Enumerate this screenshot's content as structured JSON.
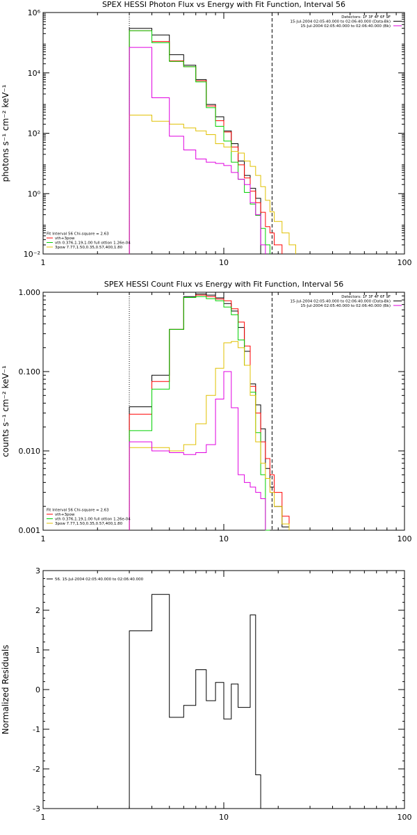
{
  "chart_data": [
    {
      "type": "line",
      "title": "SPEX HESSI Photon Flux vs Energy with Fit Function, Interval 56",
      "xlabel": "",
      "ylabel": "photons s⁻¹ cm⁻² keV⁻¹",
      "xscale": "log",
      "yscale": "log",
      "xlim": [
        1,
        100
      ],
      "ylim": [
        0.01,
        1000000
      ],
      "xticks": [
        1,
        10,
        100
      ],
      "xtick_labels": [
        "1",
        "10",
        "100"
      ],
      "yticks": [
        0.01,
        1,
        100,
        10000,
        1000000
      ],
      "ytick_labels": [
        "10⁻²",
        "10⁰",
        "10²",
        "10⁴",
        "10⁶"
      ],
      "vlines": [
        {
          "x": 3.0,
          "style": "dotted"
        },
        {
          "x": 18.5,
          "style": "dashed"
        }
      ],
      "legend_left": [
        {
          "text": "Fit Interval 56   Chi-square = 2.63",
          "color": "#000000"
        },
        {
          "text": "vth+3pow",
          "color": "#ff0000"
        },
        {
          "text": "vth 0.376,1.19,1.00   full ottion 1.26e-04",
          "color": "#00d000"
        },
        {
          "text": "3pow 7.77,1.50,0.35,0.57,400,1.80",
          "color": "#e0c000"
        }
      ],
      "legend_right": [
        {
          "text": "Detectors: 1F 3F 4F 6F 9F",
          "color": "#000000"
        },
        {
          "text": "15-Jul-2004 02:05:40.000 to 02:06:40.000 (Data-Bk)",
          "color": "#000000"
        },
        {
          "text": "15-Jul-2004 02:05:40.000 to 02:06:40.000 (Bk)",
          "color": "#e000e0"
        }
      ],
      "bin_edges": [
        3,
        4,
        5,
        6,
        7,
        8,
        9,
        10,
        11,
        12,
        13,
        14,
        15,
        16,
        17,
        18,
        19,
        21,
        23,
        25
      ],
      "series": [
        {
          "name": "Data-Bk",
          "color": "#000000",
          "values": [
            300000,
            180000,
            40000,
            18000,
            6000,
            900,
            350,
            120,
            45,
            12,
            4,
            1.5,
            0.7,
            null,
            null,
            null,
            null,
            null,
            null
          ]
        },
        {
          "name": "vth+3pow",
          "color": "#ff0000",
          "values": [
            250000,
            110000,
            25000,
            16000,
            5500,
            800,
            260,
            110,
            35,
            9,
            3.3,
            1.2,
            0.5,
            0.24,
            0.08,
            0.05,
            0.02,
            null,
            null
          ]
        },
        {
          "name": "vth",
          "color": "#00d000",
          "values": [
            250000,
            100000,
            24000,
            16000,
            5000,
            700,
            170,
            55,
            11,
            3,
            1.1,
            0.45,
            0.19,
            0.07,
            0.02,
            null,
            null,
            null,
            null
          ]
        },
        {
          "name": "3pow",
          "color": "#e0c000",
          "values": [
            400,
            250,
            200,
            150,
            120,
            90,
            45,
            35,
            25,
            22,
            12,
            8,
            4,
            1.7,
            0.6,
            0.25,
            0.12,
            0.05,
            0.02
          ]
        },
        {
          "name": "Bk",
          "color": "#e000e0",
          "values": [
            70000,
            1500,
            80,
            28,
            14,
            11,
            10,
            8.5,
            5,
            3,
            2,
            0.5,
            0.2,
            0.02,
            null,
            null,
            null,
            null,
            null
          ]
        }
      ]
    },
    {
      "type": "line",
      "title": "SPEX HESSI Count Flux vs Energy with Fit Function, Interval 56",
      "xlabel": "",
      "ylabel": "counts s⁻¹ cm⁻² keV⁻¹",
      "xscale": "log",
      "yscale": "log",
      "xlim": [
        1,
        100
      ],
      "ylim": [
        0.001,
        1.0
      ],
      "xticks": [
        1,
        10,
        100
      ],
      "xtick_labels": [
        "1",
        "10",
        "100"
      ],
      "yticks": [
        0.001,
        0.01,
        0.1,
        1.0
      ],
      "ytick_labels": [
        "0.001",
        "0.010",
        "0.100",
        "1.000"
      ],
      "vlines": [
        {
          "x": 3.0,
          "style": "dotted"
        },
        {
          "x": 18.5,
          "style": "dashed"
        }
      ],
      "legend_left": [
        {
          "text": "Fit Interval 56   Chi-square = 2.63",
          "color": "#000000"
        },
        {
          "text": "vth+3pow",
          "color": "#ff0000"
        },
        {
          "text": "vth 0.376,1.19,1.00   full ottion 1.26e-04",
          "color": "#00d000"
        },
        {
          "text": "3pow 7.77,1.50,0.35,0.57,400,1.80",
          "color": "#e0c000"
        }
      ],
      "legend_right": [
        {
          "text": "Detectors: 1F 3F 4F 6F 9F",
          "color": "#000000"
        },
        {
          "text": "15-Jul-2004 02:05:40.000 to 02:06:40.000 (Data-Bk)",
          "color": "#000000"
        },
        {
          "text": "15-Jul-2004 02:05:40.000 to 02:06:40.000 (Bk)",
          "color": "#e000e0"
        }
      ],
      "bin_edges": [
        3,
        4,
        5,
        6,
        7,
        8,
        9,
        10,
        11,
        12,
        13,
        14,
        15,
        16,
        17,
        18,
        19,
        21,
        23,
        25
      ],
      "series": [
        {
          "name": "Data-Bk",
          "color": "#000000",
          "values": [
            0.036,
            0.09,
            0.34,
            0.88,
            0.95,
            0.92,
            0.85,
            0.72,
            0.58,
            0.36,
            0.18,
            0.07,
            0.038,
            0.019,
            0.006,
            0.0035,
            0.002,
            0.0011,
            null
          ]
        },
        {
          "name": "vth+3pow",
          "color": "#ff0000",
          "values": [
            0.029,
            0.075,
            0.34,
            0.86,
            0.92,
            0.88,
            0.82,
            0.78,
            0.62,
            0.42,
            0.21,
            0.065,
            0.03,
            0.013,
            0.008,
            0.005,
            0.003,
            0.0015,
            null
          ]
        },
        {
          "name": "vth",
          "color": "#00d000",
          "values": [
            0.018,
            0.06,
            0.34,
            0.86,
            0.88,
            0.83,
            0.78,
            0.65,
            0.52,
            0.25,
            0.12,
            0.055,
            0.017,
            0.005,
            0.001,
            null,
            null,
            null,
            null
          ]
        },
        {
          "name": "3pow",
          "color": "#e0c000",
          "values": [
            0.011,
            0.011,
            0.01,
            0.012,
            0.022,
            0.05,
            0.11,
            0.23,
            0.24,
            0.2,
            0.12,
            0.05,
            0.013,
            0.007,
            0.0045,
            0.003,
            0.002,
            0.0012,
            null
          ]
        },
        {
          "name": "Bk",
          "color": "#e000e0",
          "values": [
            0.013,
            0.01,
            0.0095,
            0.009,
            0.0095,
            0.012,
            0.045,
            0.1,
            0.035,
            0.005,
            0.004,
            0.0035,
            0.003,
            0.0025,
            null,
            null,
            null,
            null,
            null
          ]
        }
      ]
    },
    {
      "type": "line",
      "title": "",
      "xlabel": "",
      "ylabel": "Normalized Residuals",
      "xscale": "log",
      "yscale": "linear",
      "xlim": [
        1,
        100
      ],
      "ylim": [
        -3,
        3
      ],
      "xticks": [
        1,
        10,
        100
      ],
      "xtick_labels": [
        "1",
        "10",
        "100"
      ],
      "yticks": [
        -3,
        -2,
        -1,
        0,
        1,
        2,
        3
      ],
      "ytick_labels": [
        "-3",
        "-2",
        "-1",
        "0",
        "1",
        "2",
        "3"
      ],
      "legend_left": [
        {
          "text": "56. 15-Jul-2004 02:05:40.000 to 02:06:40.000",
          "color": "#000000"
        }
      ],
      "bin_edges": [
        3,
        4,
        5,
        6,
        7,
        8,
        9,
        10,
        11,
        12,
        14,
        15,
        16,
        17,
        18
      ],
      "series": [
        {
          "name": "",
          "color": "#000000",
          "values": [
            1.48,
            2.4,
            -0.7,
            -0.4,
            0.5,
            -0.28,
            0.18,
            -0.74,
            0.14,
            -0.45,
            1.88,
            -2.15,
            null,
            null
          ]
        }
      ]
    }
  ]
}
